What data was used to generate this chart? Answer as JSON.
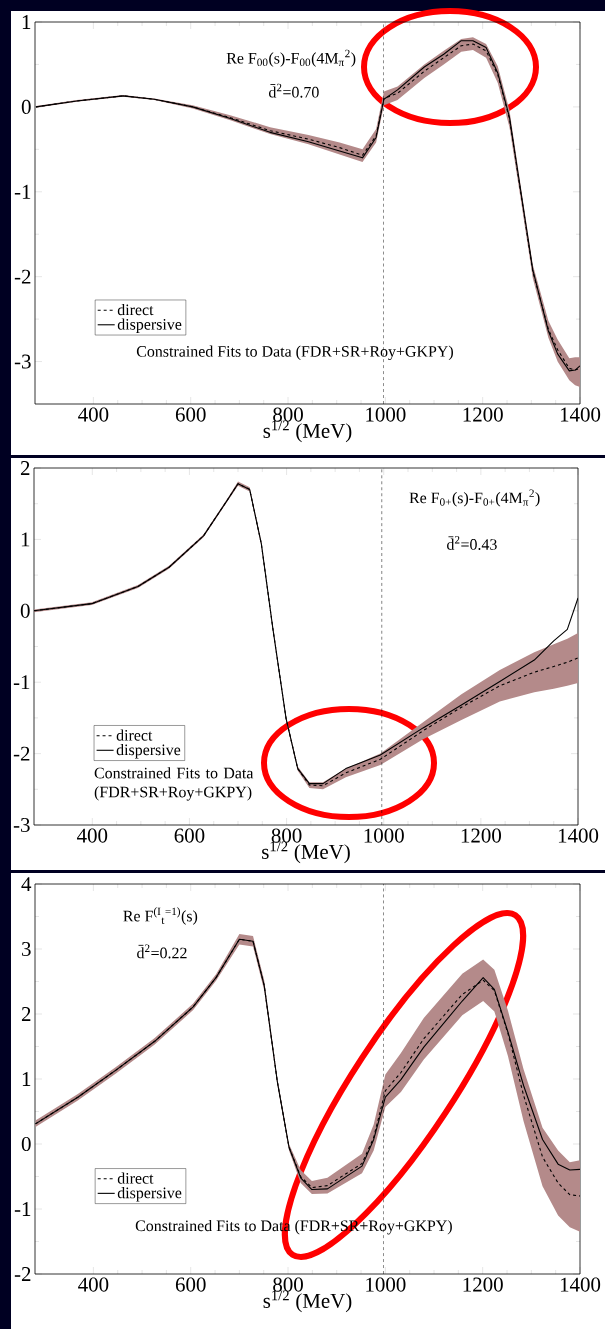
{
  "chart_data": [
    {
      "type": "line",
      "xlim": [
        280,
        1400
      ],
      "xticks": [
        400,
        600,
        800,
        1000,
        1200,
        1400
      ],
      "ylim": [
        -3.5,
        1
      ],
      "yticks": [
        -3,
        -2,
        -1,
        0,
        1
      ],
      "xlabel": "s$^{1/2}$  (MeV)",
      "legend": "bottom left",
      "annotations": [
        "Re F$_{00}$(s)-F$_{00}$(4M$_{π}$$^{2}$)",
        "d̄$^{2}$=0.70",
        "Constrained Fits to Data (FDR+SR+Roy+GKPY)"
      ],
      "ref_lines": [
        {
          "axis": "x",
          "value": 996,
          "line_style": "dashed",
          "color": "#000000"
        }
      ],
      "x": [
        282,
        366,
        461,
        525,
        604,
        683,
        763,
        842,
        906,
        953,
        981,
        997,
        1025,
        1080,
        1120,
        1156,
        1180,
        1207,
        1231,
        1255,
        1279,
        1303,
        1335,
        1354,
        1378,
        1390,
        1400
      ],
      "series": [
        {
          "name": "direct",
          "color": "#000000",
          "line_style": "dashed",
          "values": [
            0,
            0.07,
            0.13,
            0.09,
            0,
            -0.13,
            -0.28,
            -0.38,
            -0.48,
            -0.57,
            -0.34,
            0.1,
            0.16,
            0.42,
            0.58,
            0.72,
            0.74,
            0.66,
            0.38,
            -0.14,
            -1.04,
            -1.94,
            -2.62,
            -2.86,
            -3.08,
            -3.1,
            -3.08
          ],
          "lower": [
            -0.01,
            0.06,
            0.12,
            0.08,
            -0.02,
            -0.16,
            -0.32,
            -0.44,
            -0.56,
            -0.65,
            -0.42,
            0.02,
            0.08,
            0.34,
            0.5,
            0.65,
            0.67,
            0.58,
            0.28,
            -0.24,
            -1.12,
            -2.02,
            -2.72,
            -3.0,
            -3.22,
            -3.28,
            -3.3
          ],
          "upper": [
            0.01,
            0.08,
            0.14,
            0.1,
            0.02,
            -0.1,
            -0.24,
            -0.33,
            -0.42,
            -0.5,
            -0.26,
            0.18,
            0.24,
            0.5,
            0.66,
            0.8,
            0.82,
            0.74,
            0.48,
            -0.04,
            -0.96,
            -1.86,
            -2.52,
            -2.74,
            -2.96,
            -2.95,
            -2.95
          ]
        },
        {
          "name": "dispersive",
          "color": "#000000",
          "line_style": "solid",
          "values": [
            0,
            0.07,
            0.13,
            0.09,
            0,
            -0.14,
            -0.3,
            -0.41,
            -0.52,
            -0.6,
            -0.36,
            0.09,
            0.2,
            0.47,
            0.62,
            0.78,
            0.78,
            0.7,
            0.4,
            -0.12,
            -1.02,
            -1.92,
            -2.64,
            -2.91,
            -3.11,
            -3.1,
            -3.05
          ]
        }
      ]
    },
    {
      "type": "line",
      "xlim": [
        280,
        1400
      ],
      "xticks": [
        400,
        600,
        800,
        1000,
        1200,
        1400
      ],
      "ylim": [
        -3,
        2
      ],
      "yticks": [
        -3,
        -2,
        -1,
        0,
        1,
        2
      ],
      "xlabel": "s$^{1/2}$  (MeV)",
      "legend": "bottom left",
      "annotations": [
        "Re F$_{0+}$(s)-F$_{0+}$(4M$_{π}$$^{2}$)",
        "d̄$^{2}$=0.43",
        "Constrained Fits to Data (FDR+SR+Roy+GKPY)"
      ],
      "ref_lines": [
        {
          "axis": "x",
          "value": 996,
          "line_style": "dashed",
          "color": "#000000"
        }
      ],
      "x": [
        280,
        399,
        494,
        558,
        629,
        677,
        700,
        724,
        748,
        772,
        799,
        823,
        847,
        875,
        922,
        993,
        1081,
        1160,
        1239,
        1310,
        1350,
        1378,
        1400
      ],
      "series": [
        {
          "name": "direct",
          "color": "#000000",
          "line_style": "dashed",
          "values": [
            0,
            0.1,
            0.34,
            0.61,
            1.05,
            1.54,
            1.78,
            1.7,
            0.94,
            -0.26,
            -1.51,
            -2.21,
            -2.44,
            -2.45,
            -2.27,
            -2.08,
            -1.68,
            -1.35,
            -1.05,
            -0.86,
            -0.78,
            -0.72,
            -0.66
          ],
          "lower": [
            -0.02,
            0.08,
            0.32,
            0.59,
            1.03,
            1.52,
            1.75,
            1.67,
            0.91,
            -0.29,
            -1.54,
            -2.24,
            -2.48,
            -2.5,
            -2.33,
            -2.16,
            -1.8,
            -1.53,
            -1.27,
            -1.14,
            -1.09,
            -1.05,
            -1.01
          ],
          "upper": [
            0.02,
            0.12,
            0.36,
            0.63,
            1.07,
            1.56,
            1.81,
            1.73,
            0.97,
            -0.23,
            -1.48,
            -2.18,
            -2.4,
            -2.4,
            -2.21,
            -2,
            -1.56,
            -1.17,
            -0.83,
            -0.58,
            -0.47,
            -0.39,
            -0.31
          ]
        },
        {
          "name": "dispersive",
          "color": "#000000",
          "line_style": "solid",
          "values": [
            0,
            0.1,
            0.34,
            0.61,
            1.05,
            1.54,
            1.78,
            1.7,
            0.94,
            -0.26,
            -1.51,
            -2.21,
            -2.42,
            -2.42,
            -2.21,
            -2.02,
            -1.64,
            -1.32,
            -0.99,
            -0.69,
            -0.42,
            -0.26,
            0.18
          ]
        }
      ]
    },
    {
      "type": "line",
      "xlim": [
        280,
        1400
      ],
      "xticks": [
        400,
        600,
        800,
        1000,
        1200,
        1400
      ],
      "ylim": [
        -2,
        4
      ],
      "yticks": [
        -2,
        -1,
        0,
        1,
        2,
        3,
        4
      ],
      "xlabel": "s$^{1/2}$  (MeV)",
      "legend": "bottom left",
      "annotations": [
        "Re F$^{(I}$$_{t}$$^{=1)}$(s)",
        "d̄$^{2}$=0.22",
        "Constrained Fits to Data (FDR+SR+Roy+GKPY)"
      ],
      "ref_lines": [
        {
          "axis": "x",
          "value": 996,
          "line_style": "dashed",
          "color": "#000000"
        }
      ],
      "x": [
        281,
        368,
        447,
        526,
        605,
        652,
        700,
        728,
        751,
        778,
        802,
        826,
        849,
        881,
        952,
        976,
        1000,
        1032,
        1079,
        1158,
        1201,
        1224,
        1252,
        1284,
        1323,
        1355,
        1379,
        1400
      ],
      "series": [
        {
          "name": "direct",
          "color": "#000000",
          "line_style": "dashed",
          "values": [
            0.31,
            0.72,
            1.14,
            1.58,
            2.11,
            2.56,
            3.15,
            3.12,
            2.44,
            0.96,
            -0.05,
            -0.5,
            -0.67,
            -0.64,
            -0.3,
            0.1,
            0.82,
            1.1,
            1.62,
            2.3,
            2.52,
            2.36,
            1.7,
            0.75,
            -0.2,
            -0.6,
            -0.78,
            -0.8
          ],
          "lower": [
            0.26,
            0.67,
            1.09,
            1.53,
            2.06,
            2.51,
            3.07,
            3.04,
            2.36,
            0.91,
            -0.1,
            -0.6,
            -0.77,
            -0.76,
            -0.45,
            -0.1,
            0.57,
            0.8,
            1.3,
            1.98,
            2.2,
            2.04,
            1.35,
            0.35,
            -0.65,
            -1.1,
            -1.28,
            -1.35
          ],
          "upper": [
            0.36,
            0.77,
            1.19,
            1.63,
            2.16,
            2.61,
            3.23,
            3.2,
            2.52,
            1.01,
            0,
            -0.4,
            -0.57,
            -0.52,
            -0.15,
            0.3,
            1.07,
            1.4,
            1.94,
            2.62,
            2.84,
            2.68,
            2.05,
            1.15,
            0.25,
            -0.1,
            -0.28,
            -0.25
          ]
        },
        {
          "name": "dispersive",
          "color": "#000000",
          "line_style": "solid",
          "values": [
            0.31,
            0.72,
            1.14,
            1.58,
            2.11,
            2.56,
            3.15,
            3.12,
            2.44,
            0.96,
            -0.05,
            -0.52,
            -0.7,
            -0.69,
            -0.34,
            0.07,
            0.72,
            0.99,
            1.49,
            2.2,
            2.56,
            2.38,
            1.72,
            0.9,
            0.07,
            -0.31,
            -0.4,
            -0.39
          ]
        }
      ]
    }
  ]
}
